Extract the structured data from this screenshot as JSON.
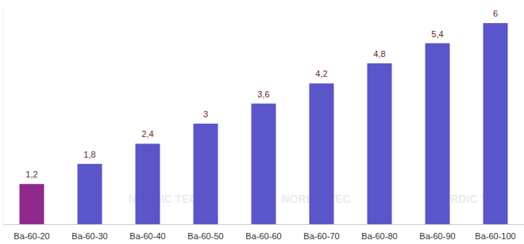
{
  "chart_data": {
    "type": "bar",
    "categories": [
      "Ba-60-20",
      "Ba-60-30",
      "Ba-60-40",
      "Ba-60-50",
      "Ba-60-60",
      "Ba-60-70",
      "Ba-60-80",
      "Ba-60-90",
      "Ba-60-100"
    ],
    "values": [
      1.2,
      1.8,
      2.4,
      3,
      3.6,
      4.2,
      4.8,
      5.4,
      6
    ],
    "value_labels": [
      "1,2",
      "1,8",
      "2,4",
      "3",
      "3,6",
      "4,2",
      "4,8",
      "5,4",
      "6"
    ],
    "colors": [
      "#8f2a8c",
      "#5a55c8",
      "#5a55c8",
      "#5a55c8",
      "#5a55c8",
      "#5a55c8",
      "#5a55c8",
      "#5a55c8",
      "#5a55c8"
    ],
    "ylim": [
      0,
      6.5
    ],
    "data_labels": true,
    "grid": false,
    "tick_labels": "x",
    "annotations": [
      "NORDIC TEC"
    ]
  }
}
